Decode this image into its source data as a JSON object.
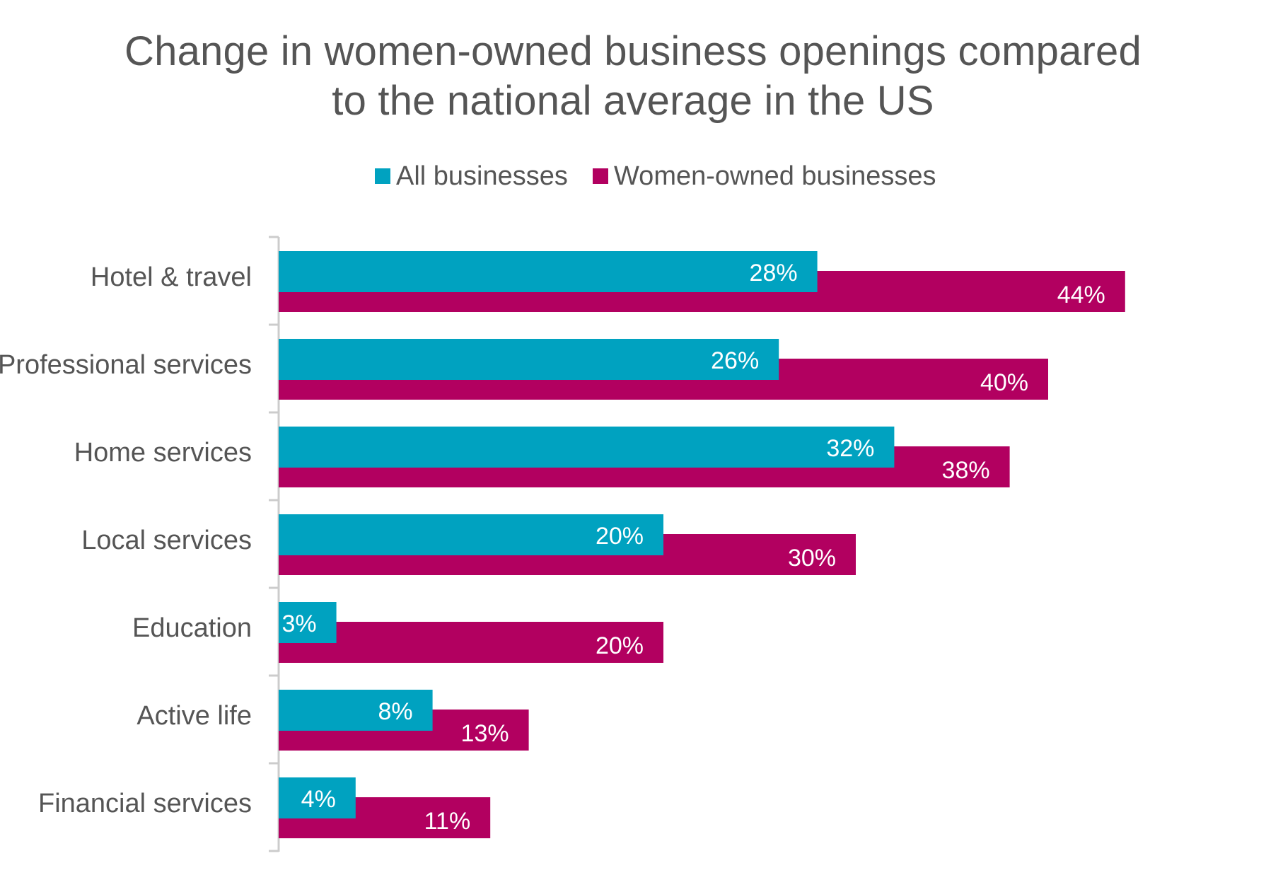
{
  "chart_data": {
    "type": "bar",
    "orientation": "horizontal",
    "title": "Change in women-owned business openings compared to the national average in the US",
    "title_lines": [
      "Change in women-owned business openings compared",
      "to the national average in the US"
    ],
    "categories": [
      "Hotel & travel",
      "Professional services",
      "Home services",
      "Local services",
      "Education",
      "Active life",
      "Financial services"
    ],
    "series": [
      {
        "name": "All businesses",
        "color": "#00A2C0",
        "values": [
          28,
          26,
          32,
          20,
          3,
          8,
          4
        ],
        "labels": [
          "28%",
          "26%",
          "32%",
          "20%",
          "3%",
          "8%",
          "4%"
        ]
      },
      {
        "name": "Women-owned businesses",
        "color": "#B20060",
        "values": [
          44,
          40,
          38,
          30,
          20,
          13,
          11
        ],
        "labels": [
          "44%",
          "40%",
          "38%",
          "30%",
          "20%",
          "13%",
          "11%"
        ]
      }
    ],
    "value_unit": "%",
    "xlim": [
      0,
      50
    ],
    "legend_position": "top-center",
    "grid": false,
    "xlabel": "",
    "ylabel": ""
  }
}
